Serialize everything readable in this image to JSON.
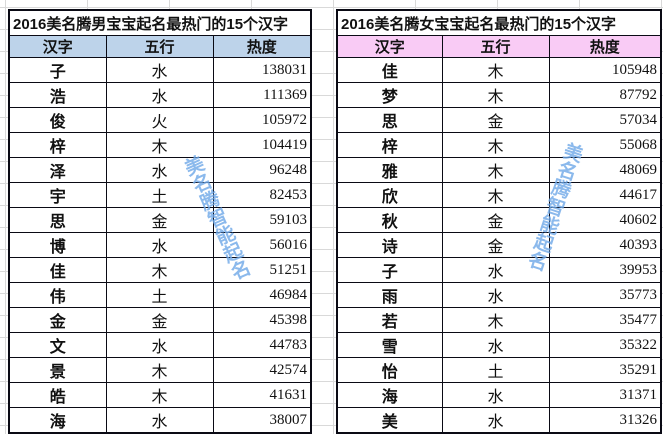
{
  "page": {
    "background": "#ffffff",
    "gridline_color": "#d9d9d9",
    "border_color": "#0a0a14"
  },
  "watermark": {
    "text": "美名腾智能起名",
    "color": "#6FA8E8"
  },
  "tables": [
    {
      "name": "boys",
      "title": "2016美名腾男宝宝起名最热门的15个汉字",
      "header_bg": "#BDD3EA",
      "columns": [
        "汉字",
        "五行",
        "热度"
      ],
      "rows": [
        [
          "子",
          "水",
          "138031"
        ],
        [
          "浩",
          "水",
          "111369"
        ],
        [
          "俊",
          "火",
          "105972"
        ],
        [
          "梓",
          "木",
          "104419"
        ],
        [
          "泽",
          "水",
          "96248"
        ],
        [
          "宇",
          "土",
          "82453"
        ],
        [
          "思",
          "金",
          "59103"
        ],
        [
          "博",
          "水",
          "56016"
        ],
        [
          "佳",
          "木",
          "51251"
        ],
        [
          "伟",
          "土",
          "46984"
        ],
        [
          "金",
          "金",
          "45398"
        ],
        [
          "文",
          "水",
          "44783"
        ],
        [
          "景",
          "木",
          "42574"
        ],
        [
          "皓",
          "木",
          "41631"
        ],
        [
          "海",
          "水",
          "38007"
        ]
      ]
    },
    {
      "name": "girls",
      "title": "2016美名腾女宝宝起名最热门的15个汉字",
      "header_bg": "#F9CBF5",
      "columns": [
        "汉字",
        "五行",
        "热度"
      ],
      "rows": [
        [
          "佳",
          "木",
          "105948"
        ],
        [
          "梦",
          "木",
          "87792"
        ],
        [
          "思",
          "金",
          "57034"
        ],
        [
          "梓",
          "木",
          "55068"
        ],
        [
          "雅",
          "木",
          "48069"
        ],
        [
          "欣",
          "木",
          "44617"
        ],
        [
          "秋",
          "金",
          "40602"
        ],
        [
          "诗",
          "金",
          "40393"
        ],
        [
          "子",
          "水",
          "39953"
        ],
        [
          "雨",
          "水",
          "35773"
        ],
        [
          "若",
          "木",
          "35477"
        ],
        [
          "雪",
          "水",
          "35322"
        ],
        [
          "怡",
          "土",
          "35291"
        ],
        [
          "海",
          "水",
          "31371"
        ],
        [
          "美",
          "水",
          "31326"
        ]
      ]
    }
  ]
}
